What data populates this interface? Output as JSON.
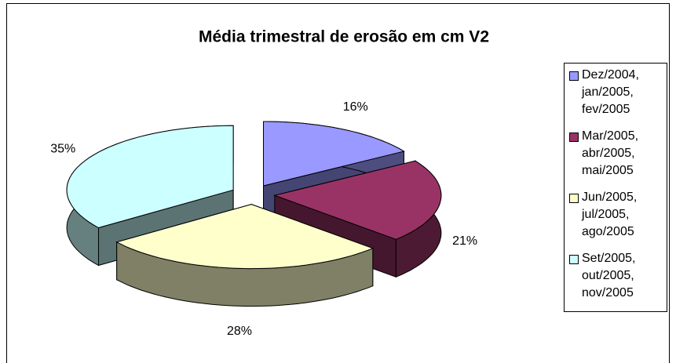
{
  "chart_data": {
    "type": "pie",
    "title": "Média trimestral de erosão em cm V2",
    "categories": [
      "Dez/2004, jan/2005, fev/2005",
      "Mar/2005, abr/2005, mai/2005",
      "Jun/2005, jul/2005, ago/2005",
      "Set/2005, out/2005, nov/2005"
    ],
    "values": [
      16,
      21,
      28,
      35
    ],
    "value_labels": [
      "16%",
      "21%",
      "28%",
      "35%"
    ],
    "colors": [
      "#9999ff",
      "#993366",
      "#ffffcc",
      "#ccffff"
    ],
    "legend": "right"
  }
}
